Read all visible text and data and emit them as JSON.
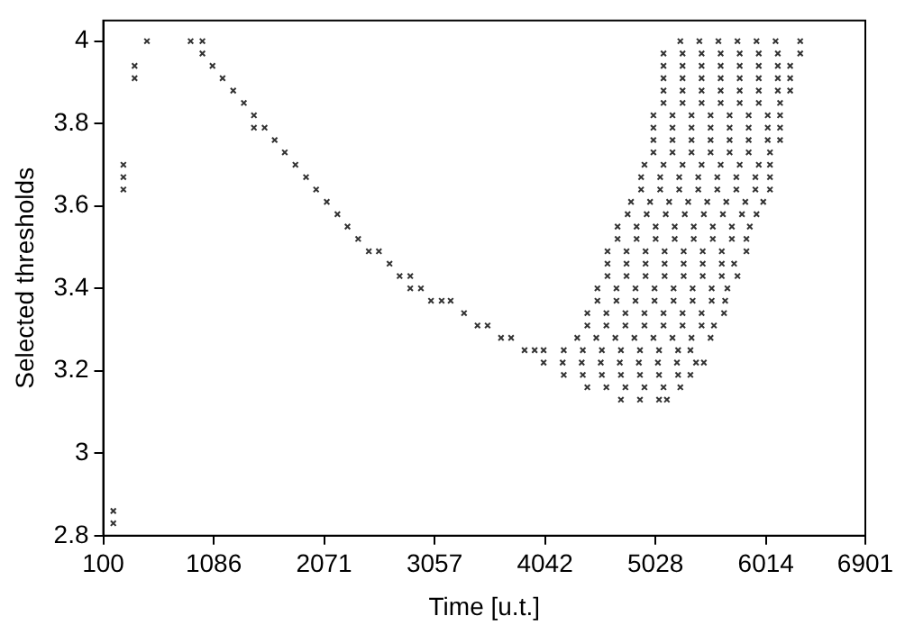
{
  "chart_data": {
    "type": "scatter",
    "xlabel": "Time [u.t.]",
    "ylabel": "Selected thresholds",
    "xlim": [
      100,
      6901
    ],
    "ylim": [
      2.8,
      4.05
    ],
    "xticks": [
      100,
      1086,
      2071,
      3057,
      4042,
      5028,
      6014,
      6901
    ],
    "yticks": [
      2.8,
      3,
      3.2,
      3.4,
      3.6,
      3.8,
      4
    ],
    "grid": false,
    "legend": false,
    "marker": "cross",
    "series": [
      {
        "color": "#333333",
        "x": [
          190,
          190,
          280,
          280,
          280,
          380,
          380,
          490,
          880,
          985,
          985,
          1075,
          1165,
          1260,
          1355,
          1445,
          1445,
          1540,
          1630,
          1720,
          1815,
          1910,
          2000,
          2095,
          2190,
          2280,
          2375,
          2470,
          2560,
          2655,
          2745,
          2840,
          2840,
          2935,
          3025,
          3120,
          3200,
          3320,
          3440,
          3530,
          3650,
          3740,
          3860,
          3950,
          4030,
          4210,
          4380,
          4550,
          4720,
          4890,
          5060,
          5230,
          5340,
          4030,
          4200,
          4370,
          4540,
          4710,
          4880,
          5050,
          5220,
          5390,
          5460,
          4210,
          4380,
          4550,
          4720,
          4890,
          5060,
          5230,
          5340,
          4420,
          4590,
          4760,
          4930,
          5100,
          5250,
          4720,
          4890,
          5060,
          5130,
          4330,
          4500,
          4670,
          4840,
          5010,
          5180,
          5350,
          5520,
          4420,
          4590,
          4760,
          4930,
          5100,
          5270,
          5440,
          5550,
          4420,
          4590,
          4760,
          4930,
          5100,
          5270,
          5440,
          5640,
          4510,
          4680,
          4850,
          5020,
          5190,
          5360,
          5530,
          5650,
          4510,
          4680,
          4850,
          5020,
          5190,
          5360,
          5530,
          5670,
          4600,
          4770,
          4940,
          5110,
          5280,
          5450,
          5620,
          5760,
          4600,
          4770,
          4940,
          5110,
          5280,
          5450,
          5620,
          5730,
          4600,
          4770,
          4940,
          5110,
          5280,
          5450,
          5620,
          5840,
          4690,
          4860,
          5030,
          5200,
          5370,
          5540,
          5710,
          5840,
          4690,
          4860,
          5030,
          5200,
          5370,
          5540,
          5710,
          5870,
          4780,
          4950,
          5120,
          5290,
          5460,
          5630,
          5800,
          5930,
          4810,
          4980,
          5150,
          5320,
          5490,
          5660,
          5830,
          5990,
          4900,
          5070,
          5240,
          5410,
          5580,
          5750,
          5920,
          6050,
          4900,
          5070,
          5240,
          5410,
          5580,
          5750,
          5920,
          6050,
          4930,
          5100,
          5270,
          5440,
          5610,
          5780,
          5950,
          6050,
          5010,
          5180,
          5350,
          5520,
          5690,
          5860,
          6050,
          5010,
          5180,
          5350,
          5520,
          5690,
          5860,
          6030,
          6140,
          5010,
          5180,
          5350,
          5520,
          5690,
          5860,
          6030,
          6140,
          5010,
          5180,
          5350,
          5520,
          5690,
          5860,
          6030,
          6140,
          5100,
          5270,
          5440,
          5610,
          5780,
          5950,
          6140,
          5100,
          5270,
          5440,
          5610,
          5780,
          5950,
          6120,
          6230,
          5100,
          5270,
          5440,
          5610,
          5780,
          5950,
          6120,
          6230,
          5100,
          5270,
          5440,
          5610,
          5780,
          5950,
          6120,
          6230,
          5100,
          5270,
          5440,
          5610,
          5780,
          5950,
          6120,
          6320,
          5250,
          5420,
          5590,
          5760,
          5930,
          6100,
          6320
        ],
        "values": [
          2.86,
          2.83,
          3.7,
          3.67,
          3.64,
          3.94,
          3.91,
          4,
          4,
          4,
          3.97,
          3.94,
          3.91,
          3.88,
          3.85,
          3.82,
          3.79,
          3.79,
          3.76,
          3.73,
          3.7,
          3.67,
          3.64,
          3.61,
          3.58,
          3.55,
          3.52,
          3.49,
          3.49,
          3.46,
          3.43,
          3.43,
          3.4,
          3.4,
          3.37,
          3.37,
          3.37,
          3.34,
          3.31,
          3.31,
          3.28,
          3.28,
          3.25,
          3.25,
          3.25,
          3.25,
          3.25,
          3.25,
          3.25,
          3.25,
          3.25,
          3.25,
          3.25,
          3.22,
          3.22,
          3.22,
          3.22,
          3.22,
          3.22,
          3.22,
          3.22,
          3.22,
          3.22,
          3.19,
          3.19,
          3.19,
          3.19,
          3.19,
          3.19,
          3.19,
          3.19,
          3.16,
          3.16,
          3.16,
          3.16,
          3.16,
          3.16,
          3.13,
          3.13,
          3.13,
          3.13,
          3.28,
          3.28,
          3.28,
          3.28,
          3.28,
          3.28,
          3.28,
          3.28,
          3.31,
          3.31,
          3.31,
          3.31,
          3.31,
          3.31,
          3.31,
          3.31,
          3.34,
          3.34,
          3.34,
          3.34,
          3.34,
          3.34,
          3.34,
          3.34,
          3.37,
          3.37,
          3.37,
          3.37,
          3.37,
          3.37,
          3.37,
          3.37,
          3.4,
          3.4,
          3.4,
          3.4,
          3.4,
          3.4,
          3.4,
          3.4,
          3.43,
          3.43,
          3.43,
          3.43,
          3.43,
          3.43,
          3.43,
          3.43,
          3.46,
          3.46,
          3.46,
          3.46,
          3.46,
          3.46,
          3.46,
          3.46,
          3.49,
          3.49,
          3.49,
          3.49,
          3.49,
          3.49,
          3.49,
          3.49,
          3.52,
          3.52,
          3.52,
          3.52,
          3.52,
          3.52,
          3.52,
          3.52,
          3.55,
          3.55,
          3.55,
          3.55,
          3.55,
          3.55,
          3.55,
          3.55,
          3.58,
          3.58,
          3.58,
          3.58,
          3.58,
          3.58,
          3.58,
          3.58,
          3.61,
          3.61,
          3.61,
          3.61,
          3.61,
          3.61,
          3.61,
          3.61,
          3.64,
          3.64,
          3.64,
          3.64,
          3.64,
          3.64,
          3.64,
          3.64,
          3.67,
          3.67,
          3.67,
          3.67,
          3.67,
          3.67,
          3.67,
          3.67,
          3.7,
          3.7,
          3.7,
          3.7,
          3.7,
          3.7,
          3.7,
          3.7,
          3.73,
          3.73,
          3.73,
          3.73,
          3.73,
          3.73,
          3.73,
          3.76,
          3.76,
          3.76,
          3.76,
          3.76,
          3.76,
          3.76,
          3.76,
          3.79,
          3.79,
          3.79,
          3.79,
          3.79,
          3.79,
          3.79,
          3.79,
          3.82,
          3.82,
          3.82,
          3.82,
          3.82,
          3.82,
          3.82,
          3.82,
          3.85,
          3.85,
          3.85,
          3.85,
          3.85,
          3.85,
          3.85,
          3.88,
          3.88,
          3.88,
          3.88,
          3.88,
          3.88,
          3.88,
          3.88,
          3.91,
          3.91,
          3.91,
          3.91,
          3.91,
          3.91,
          3.91,
          3.91,
          3.94,
          3.94,
          3.94,
          3.94,
          3.94,
          3.94,
          3.94,
          3.94,
          3.97,
          3.97,
          3.97,
          3.97,
          3.97,
          3.97,
          3.97,
          3.97,
          4,
          4,
          4,
          4,
          4,
          4,
          4
        ]
      }
    ]
  }
}
